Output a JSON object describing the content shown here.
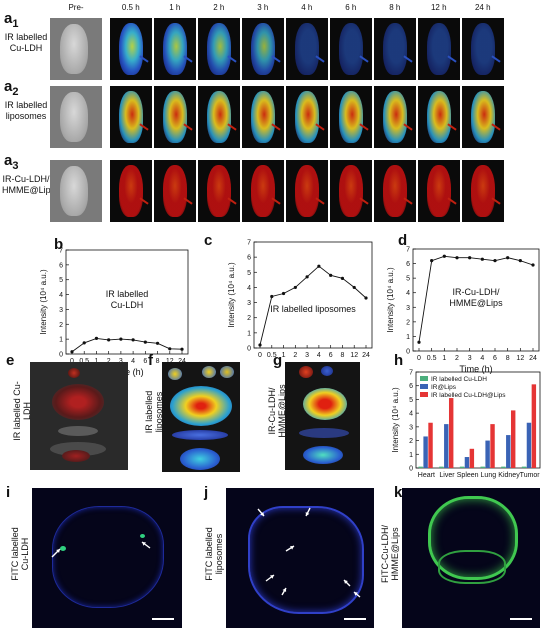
{
  "image_rows": {
    "time_points": [
      "Pre-",
      "0.5 h",
      "1 h",
      "2 h",
      "3 h",
      "4 h",
      "6 h",
      "8 h",
      "12 h",
      "24 h"
    ],
    "rows": [
      {
        "panel": "a",
        "sub": "1",
        "label_lines": [
          "IR labelled",
          "Cu-LDH"
        ],
        "palette": "blue"
      },
      {
        "panel": "a",
        "sub": "2",
        "label_lines": [
          "IR labelled",
          "liposomes"
        ],
        "palette": "hot"
      },
      {
        "panel": "a",
        "sub": "3",
        "label_lines": [
          "IR-Cu-LDH/",
          "HMME@Lips"
        ],
        "palette": "red"
      }
    ]
  },
  "line_charts": [
    {
      "panel": "b",
      "annotation_lines": [
        "IR labelled",
        "Cu-LDH"
      ]
    },
    {
      "panel": "c",
      "annotation_lines": [
        "IR labelled liposomes"
      ]
    },
    {
      "panel": "d",
      "annotation_lines": [
        "IR-Cu-LDH/",
        "HMME@Lips"
      ]
    }
  ],
  "organ_panels": [
    {
      "panel": "e",
      "label_lines": [
        "IR labelled Cu-",
        "LDH"
      ]
    },
    {
      "panel": "f",
      "label_lines": [
        "IR labelled liposomes"
      ]
    },
    {
      "panel": "g",
      "label_lines": [
        "IR-Cu-LDH/",
        "HMME@Lips"
      ]
    }
  ],
  "fitc_panels": [
    {
      "panel": "i",
      "label_lines": [
        "FITC labelled",
        "Cu-LDH"
      ]
    },
    {
      "panel": "j",
      "label_lines": [
        "FITC labelled",
        "liposomes"
      ]
    },
    {
      "panel": "k",
      "label_lines": [
        "FITC-Cu-LDH/",
        "HMME@Lips"
      ]
    }
  ],
  "chart_data": [
    {
      "panel": "b",
      "type": "line",
      "x": [
        "0",
        "0.5",
        "1",
        "2",
        "3",
        "4",
        "6",
        "8",
        "12",
        "24"
      ],
      "values": [
        0.15,
        0.75,
        1.05,
        0.95,
        1.0,
        0.95,
        0.8,
        0.72,
        0.35,
        0.32
      ],
      "xlabel": "Time (h)",
      "ylabel": "Intensity (10⁴ a.u.)",
      "ylim": [
        0,
        7
      ],
      "yticks": [
        "0",
        "1",
        "2",
        "3",
        "4",
        "5",
        "6",
        "7"
      ]
    },
    {
      "panel": "c",
      "type": "line",
      "x": [
        "0",
        "0.5",
        "1",
        "2",
        "3",
        "4",
        "6",
        "8",
        "12",
        "24"
      ],
      "values": [
        0.2,
        3.4,
        3.6,
        4.0,
        4.7,
        5.4,
        4.8,
        4.6,
        4.0,
        3.3
      ],
      "xlabel": "Time (h)",
      "ylabel": "Intensity (10⁴ a.u.)",
      "ylim": [
        0,
        7
      ],
      "yticks": [
        "0",
        "1",
        "2",
        "3",
        "4",
        "5",
        "6",
        "7"
      ]
    },
    {
      "panel": "d",
      "type": "line",
      "x": [
        "0",
        "0.5",
        "1",
        "2",
        "3",
        "4",
        "6",
        "8",
        "12",
        "24"
      ],
      "values": [
        0.6,
        6.2,
        6.5,
        6.4,
        6.4,
        6.3,
        6.2,
        6.4,
        6.2,
        5.9
      ],
      "xlabel": "Time (h)",
      "ylabel": "Intensity (10⁴ a.u.)",
      "ylim": [
        0,
        7
      ],
      "yticks": [
        "0",
        "1",
        "2",
        "3",
        "4",
        "5",
        "6",
        "7"
      ]
    },
    {
      "panel": "h",
      "type": "bar",
      "categories": [
        "Heart",
        "Liver",
        "Spleen",
        "Lung",
        "Kidney",
        "Tumor"
      ],
      "series": [
        {
          "name": "IR labelled Cu-LDH",
          "color": "#4caf7d",
          "values": [
            0.1,
            0.1,
            0.1,
            0.1,
            0.1,
            0.1
          ]
        },
        {
          "name": "IR@Lips",
          "color": "#3a63b5",
          "values": [
            2.3,
            3.2,
            0.8,
            2.0,
            2.4,
            3.3
          ]
        },
        {
          "name": "IR labelled Cu-LDH@Lips",
          "color": "#e53535",
          "values": [
            3.3,
            5.1,
            1.4,
            3.2,
            4.2,
            6.1
          ]
        }
      ],
      "ylabel": "Intensity (10⁴ a.u.)",
      "ylim": [
        0,
        7
      ],
      "yticks": [
        "0",
        "1",
        "2",
        "3",
        "4",
        "5",
        "6",
        "7"
      ],
      "legend_position": "top-left"
    }
  ]
}
